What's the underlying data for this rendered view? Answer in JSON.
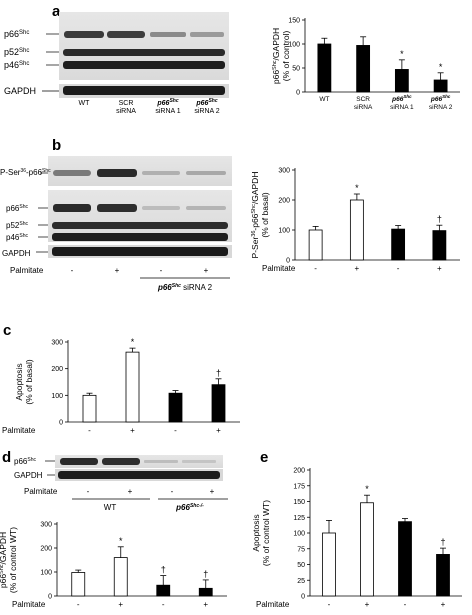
{
  "panels": {
    "a": {
      "letter": "a",
      "blot": {
        "band_labels": [
          {
            "pre": "p66",
            "sup": "Shc"
          },
          {
            "pre": "p52",
            "sup": "Shc"
          },
          {
            "pre": "p46",
            "sup": "Shc"
          },
          {
            "pre": "GAPDH",
            "sup": ""
          }
        ],
        "lane_labels": [
          {
            "lines": [
              "WT"
            ],
            "italic": false
          },
          {
            "lines": [
              "SCR",
              "siRNA"
            ],
            "italic": false
          },
          {
            "lines": [
              "p66",
              "siRNA 1"
            ],
            "sup": "Shc",
            "italic": true
          },
          {
            "lines": [
              "p66",
              "siRNA 2"
            ],
            "sup": "Shc",
            "italic": true
          }
        ]
      },
      "chart_data": {
        "type": "bar",
        "categories": [
          "WT",
          "SCR siRNA",
          "p66Shc siRNA 1",
          "p66Shc siRNA 2"
        ],
        "category_lines": [
          [
            "WT"
          ],
          [
            "SCR",
            "siRNA"
          ],
          [
            "p66",
            "siRNA 1"
          ],
          [
            "p66",
            "siRNA 2"
          ]
        ],
        "category_sup": [
          "",
          "",
          "Shc",
          "Shc"
        ],
        "values": [
          100,
          97,
          47,
          25
        ],
        "errors": [
          12,
          18,
          20,
          15
        ],
        "fills": [
          "#000000",
          "#000000",
          "#000000",
          "#000000"
        ],
        "markers": [
          "",
          "",
          "*",
          "*"
        ],
        "ylabel_lines": [
          {
            "pre": "p66",
            "sup": "Shc",
            "post": "/GAPDH"
          },
          {
            "pre": "(% of control)",
            "sup": "",
            "post": ""
          }
        ],
        "yticks": [
          0,
          50,
          100,
          150
        ],
        "ylim": [
          0,
          150
        ]
      }
    },
    "b": {
      "letter": "b",
      "blot": {
        "top_label": {
          "pre": "P-Ser",
          "sup": "36",
          "post": "-p66",
          "sup2": "Shc"
        },
        "band_labels": [
          {
            "pre": "p66",
            "sup": "Shc"
          },
          {
            "pre": "p52",
            "sup": "Shc"
          },
          {
            "pre": "p46",
            "sup": "Shc"
          },
          {
            "pre": "GAPDH",
            "sup": ""
          }
        ],
        "row_label": "Palmitate",
        "signs": [
          "-",
          "+",
          "-",
          "+"
        ],
        "group_label": {
          "pre": "p66",
          "sup": "Shc",
          "post": " siRNA 2"
        }
      },
      "chart_data": {
        "type": "bar",
        "categories": [
          "-",
          "+",
          "-",
          "+"
        ],
        "values": [
          100,
          200,
          103,
          98
        ],
        "errors": [
          12,
          20,
          12,
          18
        ],
        "fills": [
          "#ffffff",
          "#ffffff",
          "#000000",
          "#000000"
        ],
        "markers": [
          "",
          "*",
          "",
          "†"
        ],
        "row_label": "Palmitate",
        "ylabel_lines": [
          {
            "pre": "P-Ser",
            "sup": "36",
            "post": "-p66",
            "sup2": "Shc",
            "post2": "/GAPDH"
          },
          {
            "pre": "(% of basal)",
            "sup": "",
            "post": ""
          }
        ],
        "yticks": [
          0,
          100,
          200,
          300
        ],
        "ylim": [
          0,
          300
        ]
      }
    },
    "c": {
      "letter": "c",
      "chart_data": {
        "type": "bar",
        "categories": [
          "-",
          "+",
          "-",
          "+"
        ],
        "values": [
          100,
          262,
          108,
          140
        ],
        "errors": [
          8,
          15,
          10,
          22
        ],
        "fills": [
          "#ffffff",
          "#ffffff",
          "#000000",
          "#000000"
        ],
        "markers": [
          "",
          "*",
          "",
          "†"
        ],
        "row_label": "Palmitate",
        "ylabel_lines": [
          {
            "pre": "Apoptosis",
            "sup": "",
            "post": ""
          },
          {
            "pre": "(% of basal)",
            "sup": "",
            "post": ""
          }
        ],
        "yticks": [
          0,
          100,
          200,
          300
        ],
        "ylim": [
          0,
          300
        ]
      }
    },
    "d": {
      "letter": "d",
      "blot": {
        "band_labels": [
          {
            "pre": "p66",
            "sup": "Shc"
          },
          {
            "pre": "GAPDH",
            "sup": ""
          }
        ],
        "row_label": "Palmitate",
        "signs": [
          "-",
          "+",
          "-",
          "+"
        ],
        "group_labels": [
          {
            "pre": "WT",
            "sup": "",
            "italic": false
          },
          {
            "pre": "p66",
            "sup": "Shc-/-",
            "italic": true
          }
        ]
      },
      "chart_data": {
        "type": "bar",
        "categories": [
          "-",
          "+",
          "-",
          "+"
        ],
        "values": [
          98,
          160,
          45,
          32
        ],
        "errors": [
          10,
          45,
          40,
          35
        ],
        "fills": [
          "#ffffff",
          "#ffffff",
          "#000000",
          "#000000"
        ],
        "markers": [
          "",
          "*",
          "†",
          "†"
        ],
        "row_label": "Palmitate",
        "ylabel_lines": [
          {
            "pre": "p66",
            "sup": "Shc",
            "post": "/GAPDH"
          },
          {
            "pre": "(% of control WT)",
            "sup": "",
            "post": ""
          }
        ],
        "yticks": [
          0,
          100,
          200,
          300
        ],
        "ylim": [
          0,
          300
        ]
      }
    },
    "e": {
      "letter": "e",
      "chart_data": {
        "type": "bar",
        "categories": [
          "-",
          "+",
          "-",
          "+"
        ],
        "values": [
          100,
          148,
          118,
          66
        ],
        "errors": [
          20,
          12,
          5,
          10
        ],
        "fills": [
          "#ffffff",
          "#ffffff",
          "#000000",
          "#000000"
        ],
        "markers": [
          "",
          "*",
          "",
          "†"
        ],
        "row_label": "Palmitate",
        "ylabel_lines": [
          {
            "pre": "Apoptosis",
            "sup": "",
            "post": ""
          },
          {
            "pre": "(% of control WT)",
            "sup": "",
            "post": ""
          }
        ],
        "yticks": [
          0,
          25,
          50,
          75,
          100,
          125,
          150,
          175,
          200
        ],
        "ylim": [
          0,
          200
        ]
      }
    }
  }
}
